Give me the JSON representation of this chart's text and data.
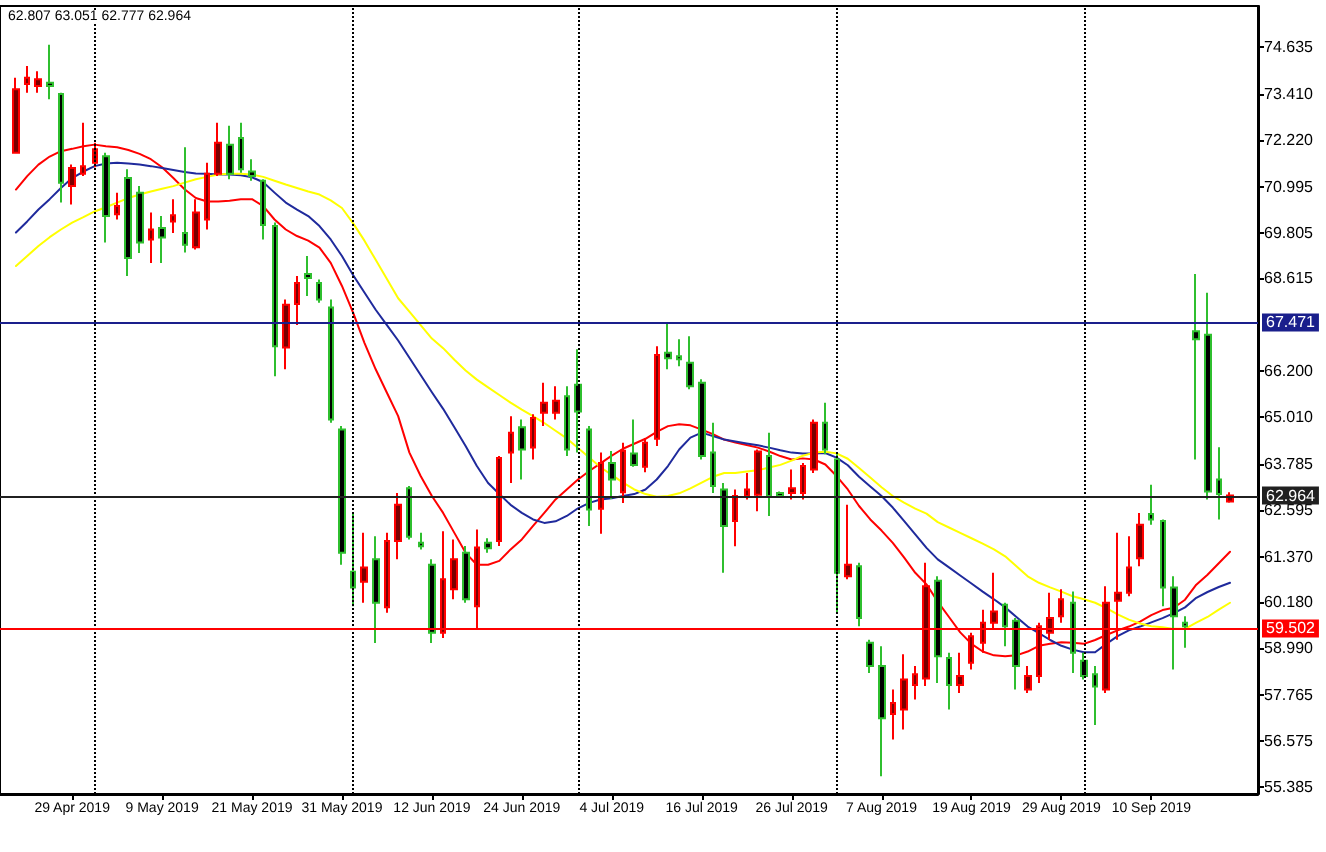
{
  "chart_data": {
    "type": "candlestick",
    "title": "62.807 63.051 62.777 62.964",
    "categories": [
      null,
      null,
      null,
      null,
      null,
      "29 Apr 2019",
      null,
      null,
      null,
      null,
      null,
      null,
      null,
      "9 May 2019",
      null,
      null,
      null,
      null,
      null,
      null,
      null,
      "21 May 2019",
      null,
      null,
      null,
      null,
      null,
      null,
      null,
      "31 May 2019",
      null,
      null,
      null,
      null,
      null,
      null,
      null,
      "12 Jun 2019",
      null,
      null,
      null,
      null,
      null,
      null,
      null,
      "24 Jun 2019",
      null,
      null,
      null,
      null,
      null,
      null,
      null,
      "4 Jul 2019",
      null,
      null,
      null,
      null,
      null,
      null,
      null,
      "16 Jul 2019",
      null,
      null,
      null,
      null,
      null,
      null,
      null,
      "26 Jul 2019",
      null,
      null,
      null,
      null,
      null,
      null,
      null,
      "7 Aug 2019",
      null,
      null,
      null,
      null,
      null,
      null,
      null,
      "19 Aug 2019",
      null,
      null,
      null,
      null,
      null,
      null,
      null,
      "29 Aug 2019",
      null,
      null,
      null,
      null,
      null,
      null,
      null,
      "10 Sep 2019",
      null,
      null,
      null,
      null,
      null,
      null,
      null
    ],
    "ohlc": [
      [
        71.89,
        73.84,
        71.86,
        73.54
      ],
      [
        73.68,
        74.15,
        73.45,
        73.84
      ],
      [
        73.63,
        74.01,
        73.45,
        73.8
      ],
      [
        73.71,
        74.7,
        73.28,
        73.63
      ],
      [
        73.42,
        73.45,
        70.59,
        71.11
      ],
      [
        71.02,
        71.58,
        70.54,
        71.49
      ],
      [
        71.34,
        72.67,
        71.28,
        71.54
      ],
      [
        71.63,
        72.15,
        71.51,
        71.98
      ],
      [
        71.8,
        71.89,
        69.55,
        70.24
      ],
      [
        70.29,
        70.85,
        70.15,
        70.5
      ],
      [
        71.23,
        71.46,
        68.68,
        69.15
      ],
      [
        70.85,
        71.02,
        69.28,
        69.55
      ],
      [
        69.63,
        70.33,
        69.02,
        69.89
      ],
      [
        69.93,
        70.24,
        69.02,
        69.68
      ],
      [
        70.1,
        70.68,
        69.8,
        70.26
      ],
      [
        69.8,
        72.03,
        69.29,
        69.49
      ],
      [
        69.43,
        70.68,
        69.37,
        70.33
      ],
      [
        70.15,
        71.63,
        69.89,
        71.34
      ],
      [
        71.34,
        72.67,
        71.28,
        72.15
      ],
      [
        72.1,
        72.59,
        71.2,
        71.34
      ],
      [
        72.27,
        72.67,
        71.37,
        71.46
      ],
      [
        71.4,
        71.72,
        71.16,
        71.28
      ],
      [
        71.16,
        71.2,
        69.63,
        70.01
      ],
      [
        69.98,
        70.07,
        66.07,
        66.85
      ],
      [
        66.82,
        68.07,
        66.25,
        67.93
      ],
      [
        67.95,
        68.68,
        67.4,
        68.5
      ],
      [
        68.73,
        69.2,
        68.16,
        68.63
      ],
      [
        68.5,
        68.59,
        67.98,
        68.07
      ],
      [
        67.86,
        68.07,
        64.86,
        64.94
      ],
      [
        64.68,
        64.77,
        61.16,
        61.47
      ],
      [
        60.98,
        62.51,
        60.08,
        60.57
      ],
      [
        60.72,
        61.99,
        60.17,
        61.09
      ],
      [
        61.3,
        61.9,
        59.12,
        60.17
      ],
      [
        60.05,
        61.99,
        59.91,
        61.78
      ],
      [
        61.78,
        63.03,
        61.3,
        62.72
      ],
      [
        63.15,
        63.21,
        61.82,
        61.89
      ],
      [
        61.73,
        61.99,
        61.56,
        61.64
      ],
      [
        61.16,
        61.3,
        59.12,
        59.39
      ],
      [
        59.39,
        62.03,
        59.25,
        60.78
      ],
      [
        60.52,
        61.82,
        60.26,
        61.3
      ],
      [
        61.47,
        61.65,
        60.17,
        60.26
      ],
      [
        60.08,
        62.08,
        59.47,
        61.61
      ],
      [
        61.73,
        61.85,
        61.47,
        61.59
      ],
      [
        61.78,
        63.99,
        61.65,
        63.94
      ],
      [
        64.08,
        65.03,
        63.29,
        64.6
      ],
      [
        64.74,
        64.94,
        63.38,
        64.16
      ],
      [
        64.21,
        65.08,
        63.9,
        64.98
      ],
      [
        65.12,
        65.9,
        64.77,
        65.38
      ],
      [
        65.12,
        65.81,
        64.94,
        65.43
      ],
      [
        65.55,
        65.81,
        63.99,
        64.16
      ],
      [
        65.85,
        66.77,
        64.08,
        65.15
      ],
      [
        64.68,
        64.77,
        62.17,
        62.6
      ],
      [
        62.62,
        64.08,
        61.97,
        63.81
      ],
      [
        63.81,
        64.12,
        62.87,
        63.38
      ],
      [
        63.05,
        64.34,
        62.77,
        64.13
      ],
      [
        64.06,
        64.94,
        63.71,
        63.76
      ],
      [
        63.71,
        64.46,
        63.57,
        64.34
      ],
      [
        64.44,
        66.85,
        64.25,
        66.62
      ],
      [
        66.68,
        67.46,
        66.25,
        66.54
      ],
      [
        66.59,
        67.03,
        66.33,
        66.51
      ],
      [
        66.42,
        67.11,
        65.73,
        65.81
      ],
      [
        65.9,
        65.99,
        63.9,
        63.99
      ],
      [
        64.08,
        64.86,
        63.03,
        63.21
      ],
      [
        63.12,
        63.29,
        60.95,
        62.17
      ],
      [
        62.3,
        63.12,
        61.64,
        62.95
      ],
      [
        62.95,
        63.55,
        62.86,
        63.12
      ],
      [
        62.98,
        64.16,
        62.55,
        64.11
      ],
      [
        63.99,
        64.6,
        62.43,
        62.95
      ],
      [
        63.03,
        63.07,
        62.9,
        62.95
      ],
      [
        63.03,
        63.64,
        62.86,
        63.15
      ],
      [
        63.03,
        63.81,
        62.86,
        63.73
      ],
      [
        63.64,
        64.94,
        63.55,
        64.86
      ],
      [
        64.86,
        65.38,
        64.04,
        64.16
      ],
      [
        63.9,
        64.04,
        59.91,
        60.95
      ],
      [
        60.86,
        62.72,
        60.78,
        61.16
      ],
      [
        61.12,
        61.21,
        59.56,
        59.77
      ],
      [
        59.13,
        59.21,
        58.34,
        58.52
      ],
      [
        58.52,
        59.04,
        55.65,
        57.16
      ],
      [
        57.27,
        57.91,
        56.61,
        57.56
      ],
      [
        57.39,
        58.83,
        56.87,
        58.17
      ],
      [
        58.03,
        58.52,
        57.65,
        58.31
      ],
      [
        58.2,
        61.21,
        58.0,
        60.6
      ],
      [
        60.74,
        60.86,
        58.08,
        58.78
      ],
      [
        58.73,
        58.87,
        57.39,
        58.03
      ],
      [
        58.03,
        58.87,
        57.82,
        58.26
      ],
      [
        58.61,
        59.39,
        58.43,
        59.3
      ],
      [
        59.13,
        59.99,
        58.87,
        59.65
      ],
      [
        59.65,
        60.95,
        59.47,
        59.94
      ],
      [
        60.12,
        60.17,
        59.04,
        59.56
      ],
      [
        59.7,
        59.77,
        57.91,
        58.52
      ],
      [
        57.91,
        58.52,
        57.82,
        58.26
      ],
      [
        58.26,
        59.65,
        58.08,
        59.56
      ],
      [
        59.39,
        60.43,
        59.21,
        59.77
      ],
      [
        59.82,
        60.52,
        59.65,
        60.26
      ],
      [
        60.17,
        60.46,
        58.34,
        58.87
      ],
      [
        58.66,
        58.87,
        58.17,
        58.26
      ],
      [
        58.31,
        58.52,
        56.99,
        57.99
      ],
      [
        57.91,
        60.6,
        57.82,
        60.17
      ],
      [
        60.22,
        61.99,
        59.21,
        60.43
      ],
      [
        60.43,
        61.9,
        60.34,
        61.09
      ],
      [
        61.33,
        62.51,
        61.12,
        62.2
      ],
      [
        62.48,
        63.24,
        62.2,
        62.34
      ],
      [
        62.3,
        62.34,
        60.08,
        60.57
      ],
      [
        60.57,
        60.86,
        58.43,
        59.82
      ],
      [
        59.65,
        59.82,
        59.0,
        59.56
      ],
      [
        67.24,
        68.73,
        63.9,
        67.03
      ],
      [
        67.15,
        68.24,
        62.86,
        63.07
      ],
      [
        63.38,
        64.22,
        62.34,
        63.0
      ],
      [
        62.807,
        63.051,
        62.777,
        62.964
      ]
    ],
    "series": [
      {
        "type": "line",
        "color": "#ff0000",
        "values": [
          70.93,
          71.28,
          71.58,
          71.79,
          71.93,
          71.99,
          72.06,
          72.1,
          72.06,
          72.03,
          71.96,
          71.86,
          71.72,
          71.51,
          71.23,
          70.94,
          70.71,
          70.62,
          70.62,
          70.64,
          70.68,
          70.68,
          70.5,
          70.15,
          69.89,
          69.72,
          69.6,
          69.42,
          69.02,
          68.42,
          67.72,
          66.94,
          66.25,
          65.64,
          65.03,
          64.08,
          63.47,
          62.95,
          62.51,
          61.99,
          61.47,
          61.16,
          61.16,
          61.26,
          61.56,
          61.82,
          62.17,
          62.51,
          62.86,
          63.12,
          63.38,
          63.6,
          63.8,
          64.0,
          64.18,
          64.31,
          64.44,
          64.62,
          64.77,
          64.82,
          64.79,
          64.68,
          64.56,
          64.42,
          64.34,
          64.28,
          64.21,
          64.11,
          63.99,
          63.9,
          63.93,
          63.9,
          63.77,
          63.47,
          63.12,
          62.69,
          62.34,
          62.05,
          61.73,
          61.35,
          60.95,
          60.65,
          60.2,
          59.8,
          59.4,
          59.1,
          58.9,
          58.8,
          58.78,
          58.8,
          58.9,
          59.05,
          59.1,
          59.14,
          59.13,
          59.1,
          59.2,
          59.33,
          59.45,
          59.55,
          59.68,
          59.85,
          59.98,
          60.04,
          60.25,
          60.64,
          60.9,
          61.2,
          61.5
        ]
      },
      {
        "type": "line",
        "color": "#1f2a9c",
        "values": [
          69.81,
          70.1,
          70.41,
          70.68,
          70.97,
          71.23,
          71.4,
          71.54,
          71.61,
          71.63,
          71.61,
          71.58,
          71.54,
          71.49,
          71.44,
          71.39,
          71.35,
          71.34,
          71.32,
          71.32,
          71.3,
          71.25,
          71.12,
          70.85,
          70.59,
          70.41,
          70.24,
          69.98,
          69.63,
          69.2,
          68.7,
          68.25,
          67.8,
          67.4,
          67.0,
          66.55,
          66.1,
          65.65,
          65.22,
          64.74,
          64.25,
          63.73,
          63.29,
          63.0,
          62.72,
          62.51,
          62.34,
          62.25,
          62.29,
          62.43,
          62.63,
          62.77,
          62.86,
          62.89,
          62.95,
          63.0,
          63.12,
          63.38,
          63.73,
          64.16,
          64.47,
          64.6,
          64.51,
          64.42,
          64.37,
          64.32,
          64.27,
          64.21,
          64.14,
          64.08,
          64.06,
          64.06,
          64.07,
          63.95,
          63.75,
          63.45,
          63.2,
          62.95,
          62.65,
          62.3,
          61.95,
          61.6,
          61.3,
          61.09,
          60.88,
          60.67,
          60.46,
          60.26,
          60.05,
          59.8,
          59.55,
          59.38,
          59.2,
          59.05,
          58.95,
          58.88,
          58.88,
          59.1,
          59.3,
          59.45,
          59.55,
          59.66,
          59.77,
          59.9,
          60.05,
          60.3,
          60.45,
          60.58,
          60.69
        ]
      },
      {
        "type": "line",
        "color": "#ffff00",
        "values": [
          68.94,
          69.2,
          69.46,
          69.69,
          69.89,
          70.07,
          70.21,
          70.36,
          70.47,
          70.59,
          70.71,
          70.8,
          70.88,
          70.95,
          71.02,
          71.11,
          71.2,
          71.26,
          71.32,
          71.34,
          71.34,
          71.32,
          71.26,
          71.16,
          71.06,
          70.97,
          70.88,
          70.8,
          70.65,
          70.45,
          70.05,
          69.6,
          69.1,
          68.6,
          68.1,
          67.75,
          67.4,
          67.05,
          66.8,
          66.5,
          66.22,
          65.98,
          65.78,
          65.58,
          65.38,
          65.2,
          65.03,
          64.85,
          64.65,
          64.45,
          64.2,
          63.95,
          63.7,
          63.5,
          63.3,
          63.12,
          63.0,
          62.93,
          62.95,
          63.02,
          63.15,
          63.3,
          63.45,
          63.55,
          63.55,
          63.59,
          63.62,
          63.69,
          63.76,
          63.87,
          64.0,
          64.08,
          64.1,
          64.06,
          63.92,
          63.68,
          63.43,
          63.18,
          62.95,
          62.78,
          62.62,
          62.49,
          62.27,
          62.13,
          61.99,
          61.85,
          61.71,
          61.56,
          61.38,
          61.12,
          60.86,
          60.69,
          60.57,
          60.46,
          60.34,
          60.26,
          60.17,
          60.03,
          59.87,
          59.73,
          59.63,
          59.56,
          59.53,
          59.49,
          59.49,
          59.65,
          59.8,
          59.99,
          60.17
        ]
      }
    ],
    "ylim": [
      55.19,
      75.71
    ],
    "yticks": [
      74.635,
      {
        "value": 73.41,
        "label": "73.410"
      },
      {
        "value": 72.22,
        "label": "72.220"
      },
      70.995,
      69.805,
      68.615,
      {
        "value": 66.2,
        "label": "66.200"
      },
      {
        "value": 65.01,
        "label": "65.010"
      },
      63.785,
      62.595,
      {
        "value": 61.37,
        "label": "61.370"
      },
      {
        "value": 60.18,
        "label": "60.180"
      },
      {
        "value": 58.99,
        "label": "58.990"
      },
      57.765,
      56.575,
      55.385
    ],
    "ref_lines": [
      {
        "axis": "y",
        "value": 67.471,
        "label": "67.471",
        "color": "#1a1f8c"
      },
      {
        "axis": "y",
        "value": 62.964,
        "label": "62.964",
        "color": "#202020"
      },
      {
        "axis": "y",
        "value": 59.502,
        "label": "59.502",
        "color": "#ff0000"
      }
    ],
    "marker": "none"
  }
}
